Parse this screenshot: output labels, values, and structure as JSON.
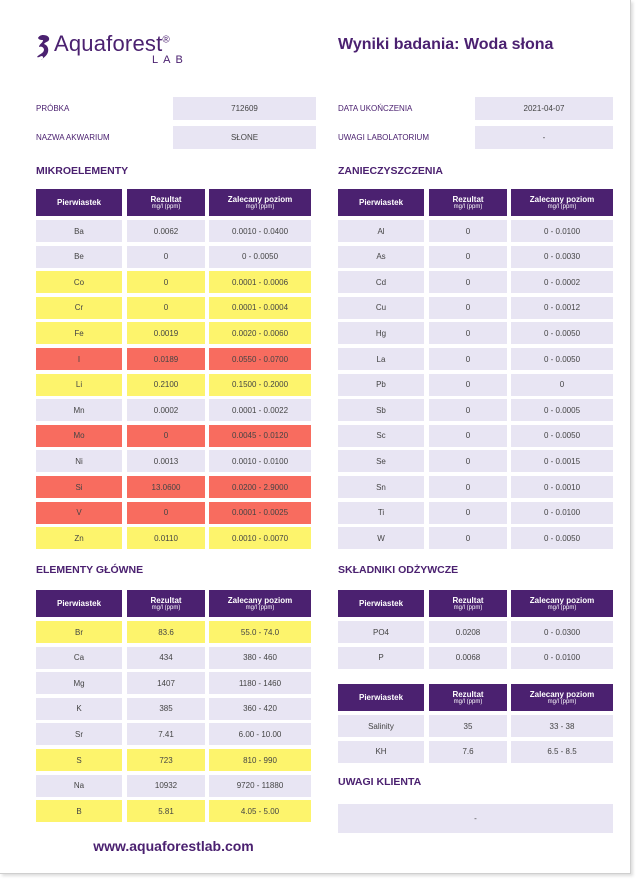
{
  "header": {
    "logo": "Aquaforest",
    "logo_mark": "®",
    "logo_sub": "LAB",
    "title": "Wyniki badania: Woda słona"
  },
  "info": [
    {
      "label": "PRÓBKA",
      "value": "712609"
    },
    {
      "label": "NAZWA AKWARIUM",
      "value": "SŁONE"
    },
    {
      "label": "DATA UKOŃCZENIA",
      "value": "2021-04-07"
    },
    {
      "label": "UWAGI LABOLATORIUM",
      "value": "-"
    }
  ],
  "sections": [
    {
      "title": "MIKROELEMENTY",
      "tables": [
        {
          "columns": [
            {
              "label": "Pierwiastek"
            },
            {
              "label": "Rezultat",
              "sub": "mg/l (ppm)"
            },
            {
              "label": "Zalecany poziom",
              "sub": "mg/l (ppm)"
            }
          ],
          "rows": [
            {
              "name": "Ba",
              "result": "0.0062",
              "range": "0.0010 - 0.0400",
              "color": "#e8e5f3"
            },
            {
              "name": "Be",
              "result": "0",
              "range": "0 - 0.0050",
              "color": "#e8e5f3"
            },
            {
              "name": "Co",
              "result": "0",
              "range": "0.0001 - 0.0006",
              "color": "#fdf46c"
            },
            {
              "name": "Cr",
              "result": "0",
              "range": "0.0001 - 0.0004",
              "color": "#fdf46c"
            },
            {
              "name": "Fe",
              "result": "0.0019",
              "range": "0.0020 - 0.0060",
              "color": "#fdf46c"
            },
            {
              "name": "I",
              "result": "0.0189",
              "range": "0.0550 - 0.0700",
              "color": "#f86c5f"
            },
            {
              "name": "Li",
              "result": "0.2100",
              "range": "0.1500 - 0.2000",
              "color": "#fdf46c"
            },
            {
              "name": "Mn",
              "result": "0.0002",
              "range": "0.0001 - 0.0022",
              "color": "#e8e5f3"
            },
            {
              "name": "Mo",
              "result": "0",
              "range": "0.0045 - 0.0120",
              "color": "#f86c5f"
            },
            {
              "name": "Ni",
              "result": "0.0013",
              "range": "0.0010 - 0.0100",
              "color": "#e8e5f3"
            },
            {
              "name": "Si",
              "result": "13.0600",
              "range": "0.0200 - 2.9000",
              "color": "#f86c5f"
            },
            {
              "name": "V",
              "result": "0",
              "range": "0.0001 - 0.0025",
              "color": "#f86c5f"
            },
            {
              "name": "Zn",
              "result": "0.0110",
              "range": "0.0010 - 0.0070",
              "color": "#fdf46c"
            }
          ]
        }
      ]
    },
    {
      "title": "ZANIECZYSZCZENIA",
      "tables": [
        {
          "columns": [
            {
              "label": "Pierwiastek"
            },
            {
              "label": "Rezultat",
              "sub": "mg/l (ppm)"
            },
            {
              "label": "Zalecany poziom",
              "sub": "mg/l (ppm)"
            }
          ],
          "rows": [
            {
              "name": "Al",
              "result": "0",
              "range": "0 - 0.0100",
              "color": "#e8e5f3"
            },
            {
              "name": "As",
              "result": "0",
              "range": "0 - 0.0030",
              "color": "#e8e5f3"
            },
            {
              "name": "Cd",
              "result": "0",
              "range": "0 - 0.0002",
              "color": "#e8e5f3"
            },
            {
              "name": "Cu",
              "result": "0",
              "range": "0 - 0.0012",
              "color": "#e8e5f3"
            },
            {
              "name": "Hg",
              "result": "0",
              "range": "0 - 0.0050",
              "color": "#e8e5f3"
            },
            {
              "name": "La",
              "result": "0",
              "range": "0 - 0.0050",
              "color": "#e8e5f3"
            },
            {
              "name": "Pb",
              "result": "0",
              "range": "0",
              "color": "#e8e5f3"
            },
            {
              "name": "Sb",
              "result": "0",
              "range": "0 - 0.0005",
              "color": "#e8e5f3"
            },
            {
              "name": "Sc",
              "result": "0",
              "range": "0 - 0.0050",
              "color": "#e8e5f3"
            },
            {
              "name": "Se",
              "result": "0",
              "range": "0 - 0.0015",
              "color": "#e8e5f3"
            },
            {
              "name": "Sn",
              "result": "0",
              "range": "0 - 0.0010",
              "color": "#e8e5f3"
            },
            {
              "name": "Ti",
              "result": "0",
              "range": "0 - 0.0100",
              "color": "#e8e5f3"
            },
            {
              "name": "W",
              "result": "0",
              "range": "0 - 0.0050",
              "color": "#e8e5f3"
            }
          ]
        }
      ]
    },
    {
      "title": "ELEMENTY GŁÓWNE",
      "tables": [
        {
          "columns": [
            {
              "label": "Pierwiastek"
            },
            {
              "label": "Rezultat",
              "sub": "mg/l (ppm)"
            },
            {
              "label": "Zalecany poziom",
              "sub": "mg/l (ppm)"
            }
          ],
          "rows": [
            {
              "name": "Br",
              "result": "83.6",
              "range": "55.0 - 74.0",
              "color": "#fdf46c"
            },
            {
              "name": "Ca",
              "result": "434",
              "range": "380 - 460",
              "color": "#e8e5f3"
            },
            {
              "name": "Mg",
              "result": "1407",
              "range": "1180 - 1460",
              "color": "#e8e5f3"
            },
            {
              "name": "K",
              "result": "385",
              "range": "360 - 420",
              "color": "#e8e5f3"
            },
            {
              "name": "Sr",
              "result": "7.41",
              "range": "6.00 - 10.00",
              "color": "#e8e5f3"
            },
            {
              "name": "S",
              "result": "723",
              "range": "810 - 990",
              "color": "#fdf46c"
            },
            {
              "name": "Na",
              "result": "10932",
              "range": "9720 - 11880",
              "color": "#e8e5f3"
            },
            {
              "name": "B",
              "result": "5.81",
              "range": "4.05 - 5.00",
              "color": "#fdf46c"
            }
          ]
        }
      ]
    },
    {
      "title": "SKŁADNIKI ODŻYWCZE",
      "tables": [
        {
          "columns": [
            {
              "label": "Pierwiastek"
            },
            {
              "label": "Rezultat",
              "sub": "mg/l (ppm)"
            },
            {
              "label": "Zalecany poziom",
              "sub": "mg/l (ppm)"
            }
          ],
          "rows": [
            {
              "name": "PO4",
              "result": "0.0208",
              "range": "0 - 0.0300",
              "color": "#e8e5f3"
            },
            {
              "name": "P",
              "result": "0.0068",
              "range": "0 - 0.0100",
              "color": "#e8e5f3"
            }
          ]
        },
        {
          "columns": [
            {
              "label": "Pierwiastek"
            },
            {
              "label": "Rezultat",
              "sub": "mg/l (ppm)"
            },
            {
              "label": "Zalecany poziom",
              "sub": "mg/l (ppm)"
            }
          ],
          "rows": [
            {
              "name": "Salinity",
              "result": "35",
              "range": "33 - 38",
              "color": "#e8e5f3"
            },
            {
              "name": "KH",
              "result": "7.6",
              "range": "6.5 - 8.5",
              "color": "#e8e5f3"
            }
          ]
        }
      ]
    }
  ],
  "client_notes": {
    "title": "UWAGI KLIENTA",
    "value": "-"
  },
  "footer": "www.aquaforestlab.com"
}
